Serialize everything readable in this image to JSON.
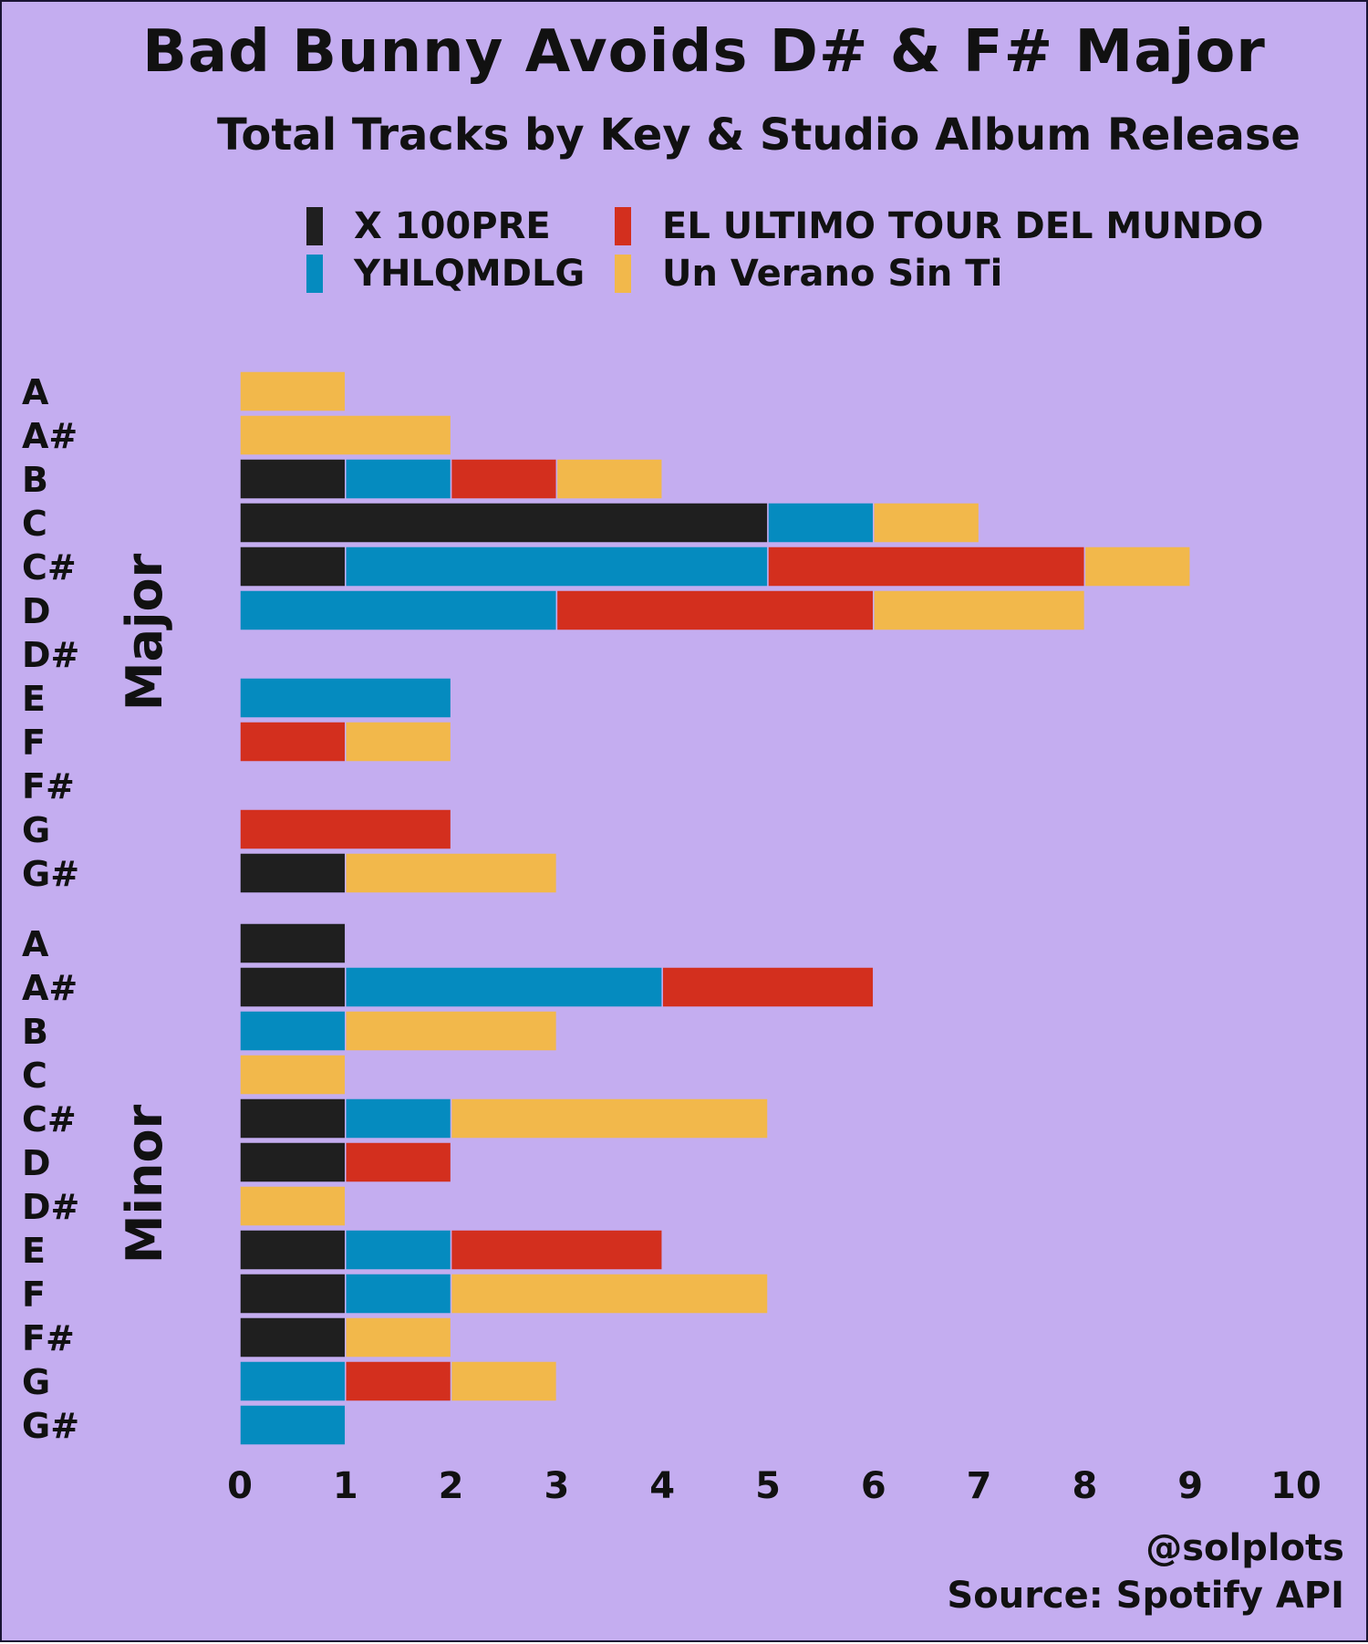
{
  "title": "Bad Bunny Avoids D# & F# Major",
  "subtitle": "Total Tracks by Key & Studio Album Release",
  "credit": "@solplots",
  "source": "Source: Spotify API",
  "legend": [
    {
      "label": "X 100PRE",
      "color": "#1f1f1f"
    },
    {
      "label": "EL ULTIMO TOUR DEL MUNDO",
      "color": "#d32f1e"
    },
    {
      "label": "YHLQMDLG",
      "color": "#058bbf"
    },
    {
      "label": "Un Verano Sin Ti",
      "color": "#f2b84b"
    }
  ],
  "chart_data": {
    "type": "bar",
    "orientation": "horizontal",
    "stacked": true,
    "title": "Bad Bunny Avoids D# & F# Major",
    "subtitle": "Total Tracks by Key & Studio Album Release",
    "xlabel": "",
    "ylabel": "",
    "xlim": [
      0,
      10
    ],
    "xticks": [
      0,
      1,
      2,
      3,
      4,
      5,
      6,
      7,
      8,
      9,
      10
    ],
    "grid": false,
    "legend_position": "top",
    "groups": [
      {
        "name": "Major",
        "categories": [
          "A",
          "A#",
          "B",
          "C",
          "C#",
          "D",
          "D#",
          "E",
          "F",
          "F#",
          "G",
          "G#"
        ]
      },
      {
        "name": "Minor",
        "categories": [
          "A",
          "A#",
          "B",
          "C",
          "C#",
          "D",
          "D#",
          "E",
          "F",
          "F#",
          "G",
          "G#"
        ]
      }
    ],
    "series": [
      {
        "name": "X 100PRE",
        "color": "#1f1f1f",
        "major": [
          0,
          0,
          1,
          5,
          1,
          0,
          0,
          0,
          0,
          0,
          0,
          1
        ],
        "minor": [
          1,
          1,
          0,
          0,
          1,
          1,
          0,
          1,
          1,
          1,
          0,
          0
        ]
      },
      {
        "name": "YHLQMDLG",
        "color": "#058bbf",
        "major": [
          0,
          0,
          1,
          1,
          4,
          3,
          0,
          2,
          0,
          0,
          0,
          0
        ],
        "minor": [
          0,
          3,
          1,
          0,
          1,
          0,
          0,
          1,
          1,
          0,
          1,
          1
        ]
      },
      {
        "name": "EL ULTIMO TOUR DEL MUNDO",
        "color": "#d32f1e",
        "major": [
          0,
          0,
          1,
          0,
          3,
          3,
          0,
          0,
          1,
          0,
          2,
          0
        ],
        "minor": [
          0,
          2,
          0,
          0,
          0,
          1,
          0,
          2,
          0,
          0,
          1,
          0
        ]
      },
      {
        "name": "Un Verano Sin Ti",
        "color": "#f2b84b",
        "major": [
          1,
          2,
          1,
          1,
          1,
          2,
          0,
          0,
          1,
          0,
          0,
          2
        ],
        "minor": [
          0,
          0,
          2,
          1,
          3,
          0,
          1,
          0,
          3,
          1,
          1,
          0
        ]
      }
    ]
  }
}
